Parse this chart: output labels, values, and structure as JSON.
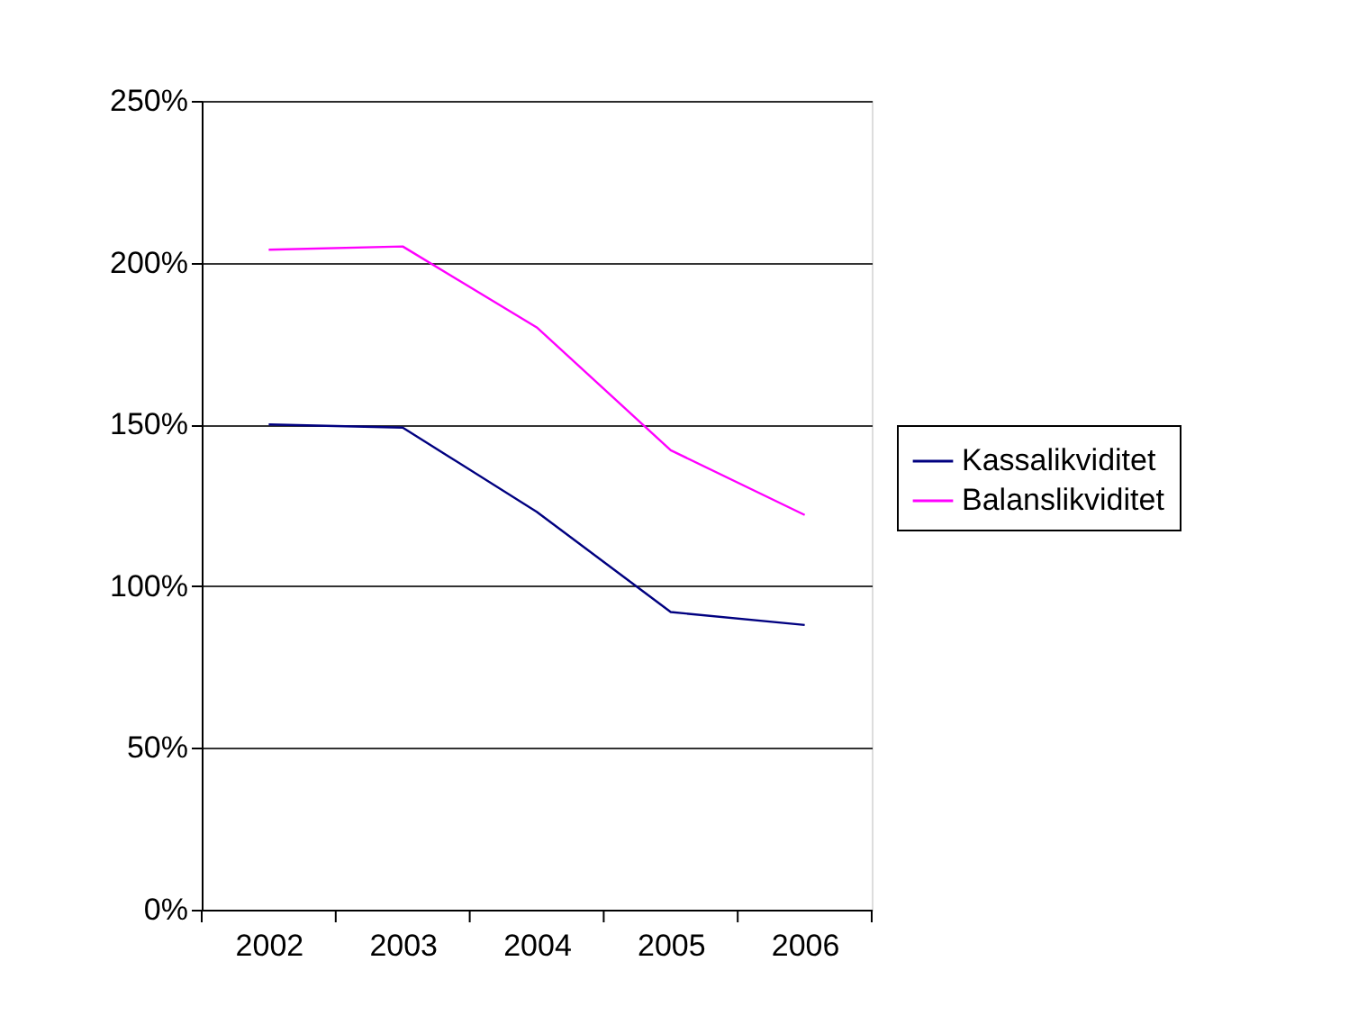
{
  "chart_data": {
    "type": "line",
    "categories": [
      "2002",
      "2003",
      "2004",
      "2005",
      "2006"
    ],
    "series": [
      {
        "name": "Kassalikviditet",
        "color": "#000080",
        "values": [
          150,
          149,
          123,
          92,
          88
        ]
      },
      {
        "name": "Balanslikviditet",
        "color": "#ff00ff",
        "values": [
          204,
          205,
          180,
          142,
          122
        ]
      }
    ],
    "ylim": [
      0,
      250
    ],
    "yticks": [
      {
        "value": 0,
        "label": "0%"
      },
      {
        "value": 50,
        "label": "50%"
      },
      {
        "value": 100,
        "label": "100%"
      },
      {
        "value": 150,
        "label": "150%"
      },
      {
        "value": 200,
        "label": "200%"
      },
      {
        "value": 250,
        "label": "250%"
      }
    ],
    "grid": "y",
    "legend": "right",
    "marker": "none",
    "line_style": "solid"
  }
}
